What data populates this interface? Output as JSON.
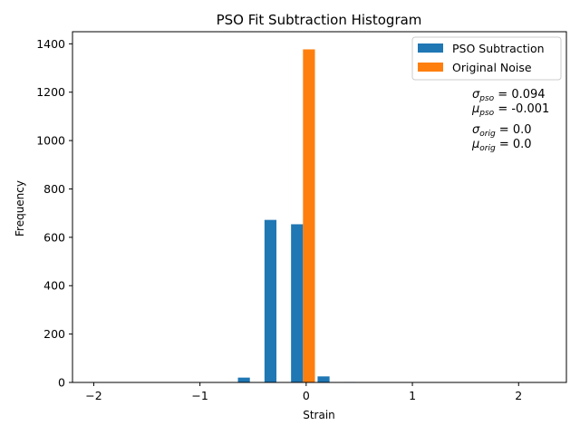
{
  "chart_data": {
    "type": "bar",
    "title": "PSO Fit Subtraction Histogram",
    "xlabel": "Strain",
    "ylabel": "Frequency",
    "xlim": [
      -2.2,
      2.45
    ],
    "ylim": [
      0,
      1450
    ],
    "xticks": [
      -2,
      -1,
      0,
      1,
      2
    ],
    "xtick_labels": [
      "−2",
      "−1",
      "0",
      "1",
      "2"
    ],
    "yticks": [
      0,
      200,
      400,
      600,
      800,
      1000,
      1200,
      1400
    ],
    "ytick_labels": [
      "0",
      "200",
      "400",
      "600",
      "800",
      "1000",
      "1200",
      "1400"
    ],
    "grid": false,
    "legend_position": "top-right",
    "bin_centers": [
      -2.03,
      -1.78,
      -1.53,
      -1.28,
      -1.03,
      -0.78,
      -0.53,
      -0.28,
      -0.03,
      0.22,
      0.47,
      0.72,
      0.97,
      1.22,
      1.47,
      1.72,
      1.97,
      2.22
    ],
    "series": [
      {
        "name": "PSO Subtraction",
        "color": "#1f77b4",
        "values": [
          0,
          0,
          0,
          0,
          0,
          1,
          20,
          672,
          654,
          25,
          2,
          0,
          0,
          0,
          0,
          0,
          0,
          0
        ]
      },
      {
        "name": "Original Noise",
        "color": "#ff7f0e",
        "values": [
          0,
          0,
          0,
          0,
          0,
          0,
          0,
          0,
          1377,
          0,
          0,
          0,
          0,
          0,
          0,
          0,
          0,
          0
        ]
      }
    ],
    "annotations": {
      "pso_sigma": {
        "symbol": "σ",
        "sub": "pso",
        "value": " = 0.094"
      },
      "pso_mu": {
        "symbol": "μ",
        "sub": "pso",
        "value": " = -0.001"
      },
      "orig_sigma": {
        "symbol": "σ",
        "sub": "orig",
        "value": " = 0.0"
      },
      "orig_mu": {
        "symbol": "μ",
        "sub": "orig",
        "value": " = 0.0"
      }
    }
  }
}
